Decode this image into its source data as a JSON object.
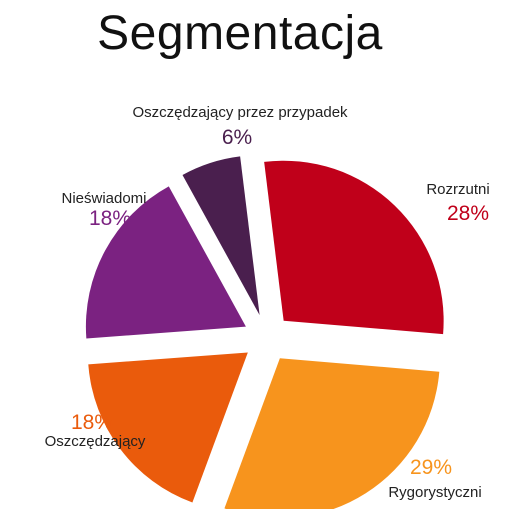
{
  "title": "Segmentacja",
  "chart_data": {
    "type": "pie",
    "title": "Segmentacja",
    "slices": [
      {
        "label": "Rozrzutni",
        "value": 28,
        "value_label": "28%",
        "color": "#c0001a"
      },
      {
        "label": "Rygorystyczni",
        "value": 29,
        "value_label": "29%",
        "color": "#f7941d"
      },
      {
        "label": "Oszczędzający",
        "value": 18,
        "value_label": "18%",
        "color": "#ea5b0c"
      },
      {
        "label": "Nieświadomi",
        "value": 18,
        "value_label": "18%",
        "color": "#7b2281"
      },
      {
        "label": "Oszczędzający przez przypadek",
        "value": 6,
        "value_label": "6%",
        "color": "#4a1f4e"
      }
    ],
    "exploded": true,
    "legend": "none"
  }
}
